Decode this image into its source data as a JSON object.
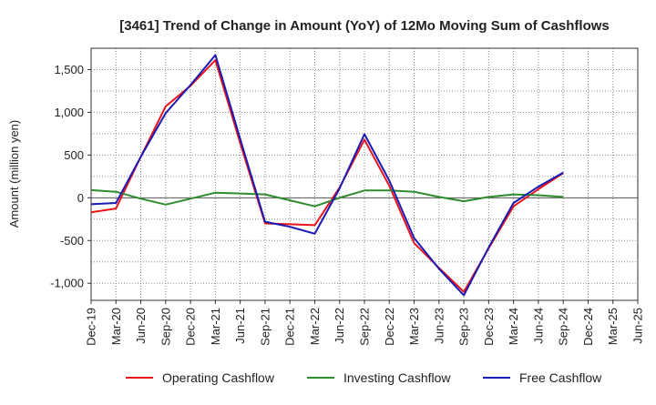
{
  "chart_data": {
    "type": "line",
    "title": "[3461]  Trend of Change in Amount (YoY) of 12Mo Moving Sum of Cashflows",
    "xlabel": "",
    "ylabel": "Amount (million yen)",
    "ylim": [
      -1200,
      1750
    ],
    "yticks": [
      1500,
      1000,
      500,
      0,
      -500,
      -1000
    ],
    "ytick_labels": [
      "1,500",
      "1,000",
      "500",
      "0",
      "-500",
      "-1,000"
    ],
    "categories": [
      "Dec-19",
      "Mar-20",
      "Jun-20",
      "Sep-20",
      "Dec-20",
      "Mar-21",
      "Jun-21",
      "Sep-21",
      "Dec-21",
      "Mar-22",
      "Jun-22",
      "Sep-22",
      "Dec-22",
      "Mar-23",
      "Jun-23",
      "Sep-23",
      "Dec-23",
      "Mar-24",
      "Jun-24",
      "Sep-24",
      "Dec-24",
      "Mar-25"
    ],
    "tick_labels": [
      "Dec-19",
      "Mar-20",
      "Jun-20",
      "Sep-20",
      "Dec-20",
      "Mar-21",
      "Jun-21",
      "Sep-21",
      "Dec-21",
      "Mar-22",
      "Jun-22",
      "Sep-22",
      "Dec-22",
      "Mar-23",
      "Jun-23",
      "Sep-23",
      "Dec-23",
      "Mar-24",
      "Jun-24",
      "Sep-24",
      "Dec-24",
      "Mar-25",
      "Jun-25"
    ],
    "grid": true,
    "legend_position": "bottom",
    "series": [
      {
        "name": "Operating Cashflow",
        "color": "#e8141c",
        "values": [
          -170,
          -125,
          480,
          1070,
          1310,
          1610,
          640,
          -300,
          -310,
          -320,
          120,
          680,
          140,
          -530,
          -820,
          -1100,
          -590,
          -100,
          100,
          290,
          null,
          null
        ]
      },
      {
        "name": "Investing Cashflow",
        "color": "#2e8b2e",
        "values": [
          90,
          70,
          -10,
          -80,
          -10,
          60,
          50,
          40,
          -30,
          -100,
          0,
          85,
          85,
          70,
          10,
          -40,
          10,
          40,
          30,
          10,
          null,
          null
        ]
      },
      {
        "name": "Free Cashflow",
        "color": "#1a1ab4",
        "values": [
          -75,
          -60,
          480,
          990,
          1320,
          1670,
          690,
          -280,
          -340,
          -420,
          110,
          745,
          200,
          -470,
          -830,
          -1140,
          -580,
          -60,
          130,
          295,
          null,
          null
        ]
      }
    ]
  }
}
